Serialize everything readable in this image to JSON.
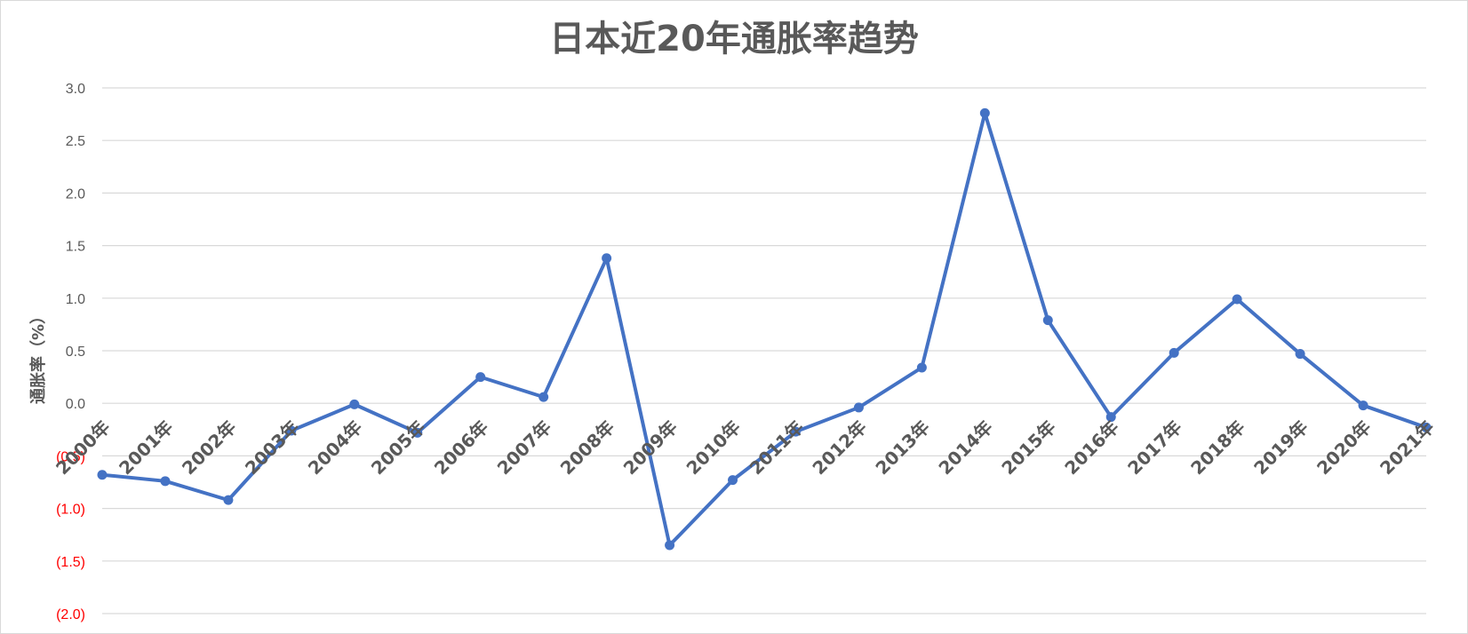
{
  "chart_data": {
    "type": "line",
    "title": "日本近20年通胀率趋势",
    "xlabel": "",
    "ylabel": "通胀率（%）",
    "categories": [
      "2000年",
      "2001年",
      "2002年",
      "2003年",
      "2004年",
      "2005年",
      "2006年",
      "2007年",
      "2008年",
      "2009年",
      "2010年",
      "2011年",
      "2012年",
      "2013年",
      "2014年",
      "2015年",
      "2016年",
      "2017年",
      "2018年",
      "2019年",
      "2020年",
      "2021年"
    ],
    "series": [
      {
        "values": [
          -0.68,
          -0.74,
          -0.92,
          -0.26,
          -0.01,
          -0.28,
          0.25,
          0.06,
          1.38,
          -1.35,
          -0.73,
          -0.27,
          -0.04,
          0.34,
          2.76,
          0.79,
          -0.13,
          0.48,
          0.99,
          0.47,
          -0.02,
          -0.23
        ],
        "color": "#4472c4"
      }
    ],
    "ylim": [
      -2.0,
      3.0
    ],
    "yticks": [
      3.0,
      2.5,
      2.0,
      1.5,
      1.0,
      0.5,
      0.0,
      -0.5,
      -1.0,
      -1.5,
      -2.0
    ],
    "ytick_labels": [
      "3.0",
      "2.5",
      "2.0",
      "1.5",
      "1.0",
      "0.5",
      "0.0",
      "(0.5)",
      "(1.0)",
      "(1.5)",
      "(2.0)"
    ],
    "negative_tick_color": "#ff0000",
    "positive_tick_color": "#595959",
    "grid": true,
    "gridline_color": "#d9d9d9",
    "legend": "none"
  }
}
